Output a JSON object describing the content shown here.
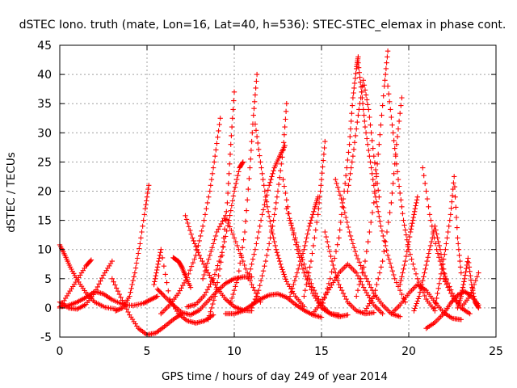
{
  "chart_data": {
    "type": "scatter",
    "title": "dSTEC Iono. truth (mate, Lon=16, Lat=40, h=536): STEC-STEC_elemax in phase cont.",
    "xlabel": "GPS time / hours of day 249 of year 2014",
    "ylabel": "dSTEC  / TECUs",
    "xlim": [
      0,
      25
    ],
    "ylim": [
      -5,
      45
    ],
    "xticks": [
      0,
      5,
      10,
      15,
      20,
      25
    ],
    "yticks": [
      -5,
      0,
      5,
      10,
      15,
      20,
      25,
      30,
      35,
      40,
      45
    ],
    "grid": true,
    "marker": "plus",
    "color": "#ff0000",
    "series": [
      {
        "x": [
          0.0,
          0.3,
          0.6,
          1.0,
          1.5,
          2.0,
          2.6,
          3.2
        ],
        "y": [
          10.8,
          9.0,
          7.0,
          4.8,
          2.6,
          1.0,
          0.1,
          -0.2
        ]
      },
      {
        "x": [
          0.0,
          0.5,
          1.0,
          1.5,
          1.8
        ],
        "y": [
          0.0,
          2.5,
          4.8,
          7.2,
          8.2
        ]
      },
      {
        "x": [
          0.0,
          0.5,
          1.0,
          1.5,
          2.0,
          2.5,
          3.0,
          3.6,
          4.2,
          4.8,
          5.2,
          5.6
        ],
        "y": [
          0.2,
          0.4,
          1.0,
          1.8,
          2.8,
          2.4,
          1.4,
          0.6,
          0.4,
          0.8,
          1.4,
          2.0
        ]
      },
      {
        "x": [
          0.0,
          0.5,
          1.0,
          1.5,
          2.0,
          2.5,
          3.0
        ],
        "y": [
          1.0,
          0.0,
          -0.2,
          0.6,
          2.6,
          5.6,
          8.0
        ]
      },
      {
        "x": [
          3.0,
          3.5,
          4.0,
          4.5,
          5.0,
          5.5,
          6.0,
          6.5,
          7.0
        ],
        "y": [
          5.0,
          1.8,
          -1.2,
          -3.5,
          -4.6,
          -4.3,
          -3.2,
          -2.0,
          -1.0
        ]
      },
      {
        "x": [
          3.2,
          3.6,
          4.0,
          4.3,
          4.6,
          4.9,
          5.1
        ],
        "y": [
          -0.5,
          0.0,
          2.0,
          6.0,
          11.0,
          17.0,
          21.0
        ]
      },
      {
        "x": [
          5.4,
          5.6,
          5.8,
          6.3,
          6.8,
          7.3,
          7.8,
          8.3,
          8.8
        ],
        "y": [
          4.0,
          7.0,
          10.0,
          1.5,
          -1.0,
          -2.2,
          -2.6,
          -2.2,
          -1.2
        ]
      },
      {
        "x": [
          5.6,
          6.0,
          6.5,
          7.0,
          7.5,
          8.0,
          8.5,
          9.0,
          9.5,
          10.0,
          10.5,
          11.0
        ],
        "y": [
          3.2,
          2.0,
          0.5,
          -0.8,
          -1.2,
          -0.4,
          1.2,
          2.8,
          4.2,
          5.0,
          5.3,
          5.3
        ]
      },
      {
        "x": [
          6.5,
          6.8,
          7.0,
          7.2,
          7.5
        ],
        "y": [
          8.6,
          8.0,
          7.0,
          5.5,
          3.5
        ]
      },
      {
        "x": [
          5.8,
          6.3,
          6.8,
          7.3,
          7.8,
          8.2,
          8.6,
          8.9,
          9.2
        ],
        "y": [
          -1.0,
          0.5,
          2.5,
          5.2,
          9.0,
          14.0,
          20.0,
          26.0,
          32.5
        ]
      },
      {
        "x": [
          7.2,
          7.6,
          8.0,
          8.5,
          9.0,
          9.5,
          10.0,
          10.5,
          11.0
        ],
        "y": [
          15.8,
          12.0,
          9.0,
          6.0,
          3.5,
          1.5,
          0.2,
          -0.4,
          -0.5
        ]
      },
      {
        "x": [
          7.3,
          7.8,
          8.3,
          8.8,
          9.3,
          9.7,
          10.0,
          10.3,
          10.5
        ],
        "y": [
          0.2,
          0.6,
          2.2,
          5.0,
          9.5,
          15.0,
          20.0,
          24.0,
          25.0
        ]
      },
      {
        "x": [
          8.5,
          8.9,
          9.3,
          9.6,
          9.8,
          10.0
        ],
        "y": [
          -2.0,
          2.0,
          9.0,
          18.0,
          28.0,
          37.0
        ]
      },
      {
        "x": [
          8.2,
          8.6,
          9.0,
          9.5,
          10.0,
          10.5,
          11.0,
          11.5
        ],
        "y": [
          5.0,
          9.0,
          13.0,
          15.8,
          12.0,
          8.0,
          4.0,
          1.0
        ]
      },
      {
        "x": [
          9.5,
          10.0,
          10.5,
          11.0,
          11.5,
          12.0,
          12.5,
          13.0,
          13.5,
          14.0,
          14.5,
          15.0
        ],
        "y": [
          -1.0,
          -1.0,
          -0.5,
          0.5,
          1.5,
          2.2,
          2.4,
          1.8,
          0.6,
          -0.4,
          -1.2,
          -1.6
        ]
      },
      {
        "x": [
          9.8,
          10.2,
          10.6,
          10.9,
          11.1,
          11.3
        ],
        "y": [
          1.0,
          5.0,
          13.0,
          24.0,
          33.0,
          40.0
        ]
      },
      {
        "x": [
          11.2,
          11.5,
          11.8,
          12.1,
          12.4,
          12.7,
          13.0,
          13.5,
          14.0
        ],
        "y": [
          31.5,
          25.0,
          19.0,
          14.0,
          10.0,
          7.0,
          4.5,
          2.0,
          0.2
        ]
      },
      {
        "x": [
          10.8,
          11.2,
          11.6,
          12.0,
          12.3,
          12.6,
          12.9
        ],
        "y": [
          5.0,
          10.0,
          16.0,
          21.0,
          24.0,
          26.0,
          27.8
        ]
      },
      {
        "x": [
          11.0,
          11.4,
          11.8,
          12.2,
          12.5,
          12.8,
          13.0
        ],
        "y": [
          0.0,
          3.0,
          8.0,
          14.0,
          20.0,
          27.0,
          35.0
        ]
      },
      {
        "x": [
          12.8,
          13.2,
          13.6,
          14.0,
          14.5,
          15.0,
          15.5,
          16.0
        ],
        "y": [
          22.0,
          15.0,
          10.0,
          6.0,
          2.5,
          0.0,
          -1.0,
          -1.2
        ]
      },
      {
        "x": [
          13.2,
          13.6,
          14.0,
          14.3,
          14.6,
          14.8
        ],
        "y": [
          2.0,
          6.0,
          10.0,
          14.0,
          17.0,
          19.0
        ]
      },
      {
        "x": [
          13.0,
          13.5,
          14.0,
          14.5,
          15.0,
          15.5,
          16.0,
          16.5
        ],
        "y": [
          17.0,
          12.0,
          7.5,
          3.5,
          0.5,
          -1.0,
          -1.5,
          -1.2
        ]
      },
      {
        "x": [
          14.0,
          14.4,
          14.8,
          15.0,
          15.2
        ],
        "y": [
          2.0,
          8.0,
          16.0,
          22.0,
          28.5
        ]
      },
      {
        "x": [
          14.5,
          15.0,
          15.5,
          16.0,
          16.5,
          17.0,
          17.5,
          18.0,
          18.5
        ],
        "y": [
          -1.0,
          1.0,
          3.5,
          6.0,
          7.5,
          6.0,
          3.0,
          0.5,
          -1.0
        ]
      },
      {
        "x": [
          15.2,
          15.6,
          16.0,
          16.5,
          17.0,
          17.5,
          18.0
        ],
        "y": [
          13.0,
          8.0,
          4.0,
          1.0,
          -0.5,
          -1.0,
          -0.8
        ]
      },
      {
        "x": [
          15.8,
          16.2,
          16.6,
          17.0,
          17.5,
          18.0,
          18.5,
          19.0,
          19.5
        ],
        "y": [
          22.0,
          18.0,
          13.0,
          9.0,
          5.5,
          2.5,
          0.5,
          -1.0,
          -1.5
        ]
      },
      {
        "x": [
          15.0,
          15.5,
          16.0,
          16.3,
          16.6,
          16.8,
          17.0,
          17.1
        ],
        "y": [
          0.0,
          5.0,
          12.0,
          20.0,
          28.0,
          36.0,
          41.0,
          43.0
        ]
      },
      {
        "x": [
          17.1,
          17.3,
          17.5,
          17.8,
          18.1,
          18.4,
          18.8,
          19.2,
          19.8
        ],
        "y": [
          42.0,
          37.0,
          31.0,
          25.0,
          19.0,
          14.0,
          9.0,
          5.0,
          1.0
        ]
      },
      {
        "x": [
          16.5,
          16.8,
          17.1,
          17.4,
          17.7,
          18.0,
          18.3
        ],
        "y": [
          20.0,
          26.0,
          33.0,
          39.0,
          34.0,
          26.0,
          19.0
        ]
      },
      {
        "x": [
          17.0,
          17.5,
          18.0,
          18.3,
          18.6,
          18.8
        ],
        "y": [
          2.0,
          8.0,
          18.0,
          28.0,
          38.0,
          44.0
        ]
      },
      {
        "x": [
          18.8,
          19.1,
          19.4,
          19.7,
          20.0,
          20.5,
          21.0,
          21.5
        ],
        "y": [
          38.0,
          30.0,
          22.0,
          15.0,
          10.0,
          5.0,
          1.5,
          -0.5
        ]
      },
      {
        "x": [
          17.5,
          18.0,
          18.5,
          19.0,
          19.3,
          19.6
        ],
        "y": [
          -0.5,
          2.0,
          8.0,
          18.0,
          28.0,
          36.0
        ]
      },
      {
        "x": [
          19.0,
          19.5,
          20.0,
          20.5,
          21.0,
          21.5,
          22.0,
          22.5,
          23.0
        ],
        "y": [
          -1.0,
          0.5,
          2.5,
          4.0,
          3.0,
          1.0,
          -0.8,
          -1.8,
          -2.0
        ]
      },
      {
        "x": [
          19.5,
          19.8,
          20.1,
          20.3,
          20.5
        ],
        "y": [
          4.0,
          8.0,
          13.0,
          16.0,
          19.0
        ]
      },
      {
        "x": [
          20.3,
          20.6,
          20.9,
          21.2,
          21.5,
          21.8,
          22.1
        ],
        "y": [
          -0.5,
          2.0,
          6.0,
          10.0,
          14.0,
          10.0,
          5.0
        ]
      },
      {
        "x": [
          20.8,
          21.2,
          21.6,
          22.0,
          22.5,
          23.0,
          23.5
        ],
        "y": [
          24.0,
          16.0,
          10.0,
          6.0,
          2.5,
          0.0,
          -1.0
        ]
      },
      {
        "x": [
          21.0,
          21.5,
          22.0,
          22.4,
          22.8,
          23.2,
          23.6,
          24.0
        ],
        "y": [
          -3.5,
          -2.5,
          -1.0,
          0.8,
          2.2,
          2.8,
          2.0,
          0.5
        ]
      },
      {
        "x": [
          21.5,
          21.8,
          22.1,
          22.4,
          22.6,
          22.8,
          23.0
        ],
        "y": [
          0.0,
          5.0,
          10.0,
          16.0,
          22.5,
          12.0,
          6.0
        ]
      },
      {
        "x": [
          22.0,
          22.5,
          23.0,
          23.5,
          24.0
        ],
        "y": [
          5.0,
          2.0,
          0.0,
          2.0,
          6.0
        ]
      },
      {
        "x": [
          22.8,
          23.0,
          23.2,
          23.4,
          23.6,
          23.8,
          24.0
        ],
        "y": [
          0.0,
          2.0,
          5.0,
          8.5,
          4.0,
          1.0,
          0.0
        ]
      }
    ]
  }
}
